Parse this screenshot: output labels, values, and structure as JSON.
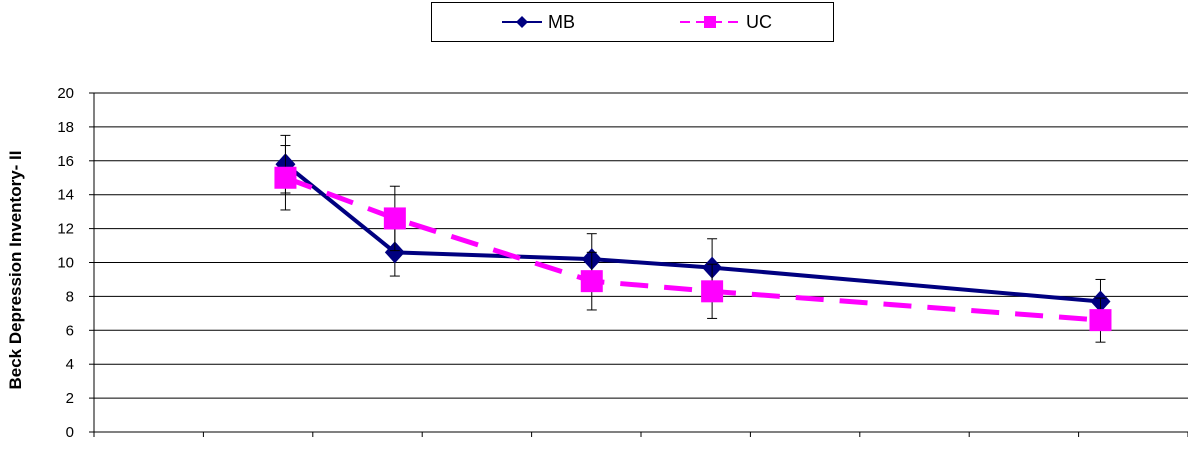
{
  "chart_data": {
    "type": "line",
    "ylabel": "Beck Depression Inventory- II",
    "xlabel": "",
    "ylim": [
      0,
      20
    ],
    "yticks": [
      0,
      2,
      4,
      6,
      8,
      10,
      12,
      14,
      16,
      18,
      20
    ],
    "grid": true,
    "legend_position": "top-center",
    "x_tick_count": 10,
    "series": [
      {
        "name": "MB",
        "color": "#000080",
        "marker": "diamond",
        "line": "solid",
        "x": [
          1.75,
          2.75,
          4.55,
          5.65,
          9.2
        ],
        "values": [
          15.8,
          10.6,
          10.2,
          9.7,
          7.7
        ],
        "error": [
          1.7,
          1.4,
          1.5,
          1.7,
          1.3
        ]
      },
      {
        "name": "UC",
        "color": "#ff00ff",
        "marker": "square",
        "line": "dashed",
        "x": [
          1.75,
          2.75,
          4.55,
          5.65,
          9.2
        ],
        "values": [
          15.0,
          12.6,
          8.9,
          8.3,
          6.6
        ],
        "error": [
          1.9,
          1.9,
          1.7,
          1.6,
          1.3
        ]
      }
    ]
  }
}
